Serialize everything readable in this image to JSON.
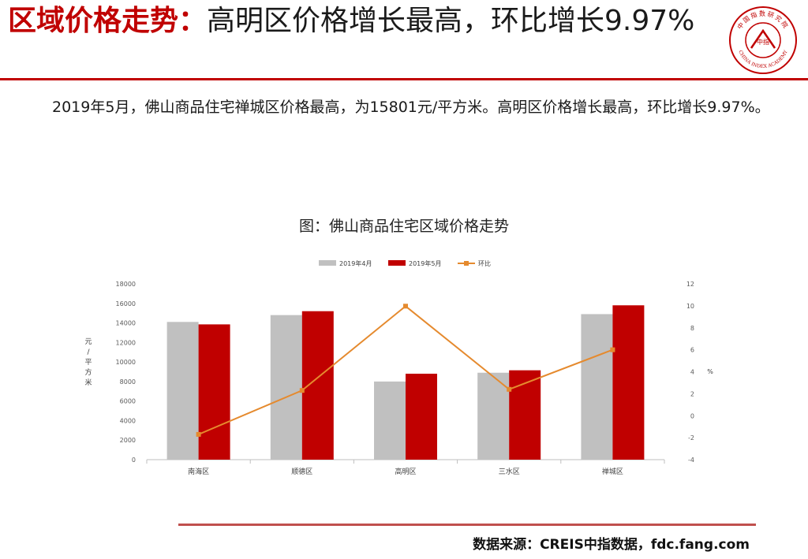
{
  "header": {
    "title_main": "区域价格走势：",
    "title_rest": "高明区价格增长最高，环比增长9.97%"
  },
  "logo": {
    "top_text": "中国指数研究院",
    "center_text": "中指",
    "bottom_text": "CHINA INDEX ACADEMY",
    "color": "#c00000"
  },
  "body": {
    "paragraph": "2019年5月，佛山商品住宅禅城区价格最高，为15801元/平方米。高明区价格增长最高，环比增长9.97%。"
  },
  "chart_data": {
    "type": "bar",
    "title": "图：佛山商品住宅区域价格走势",
    "categories": [
      "南海区",
      "顺德区",
      "高明区",
      "三水区",
      "禅城区"
    ],
    "series": [
      {
        "name": "2019年4月",
        "type": "bar",
        "axis": "left",
        "color": "#c0c0c0",
        "values": [
          14100,
          14800,
          8000,
          8900,
          14900
        ]
      },
      {
        "name": "2019年5月",
        "type": "bar",
        "axis": "left",
        "color": "#c00000",
        "values": [
          13850,
          15200,
          8800,
          9150,
          15801
        ]
      },
      {
        "name": "环比",
        "type": "line",
        "axis": "right",
        "color": "#e58a2e",
        "values": [
          -1.7,
          2.3,
          9.97,
          2.4,
          6.0
        ]
      }
    ],
    "ylabel": "元/平方米",
    "y2label": "%",
    "ylim": [
      0,
      18000
    ],
    "yticks": [
      "0",
      "2000",
      "4000",
      "6000",
      "8000",
      "10000",
      "12000",
      "14000",
      "16000",
      "18000"
    ],
    "y2lim": [
      -4,
      12
    ],
    "y2ticks": [
      "-4",
      "-2",
      "0",
      "2",
      "4",
      "6",
      "8",
      "10",
      "12"
    ],
    "legend_position": "top",
    "grid": false
  },
  "footer": {
    "source": "数据来源：CREIS中指数据，fdc.fang.com"
  }
}
